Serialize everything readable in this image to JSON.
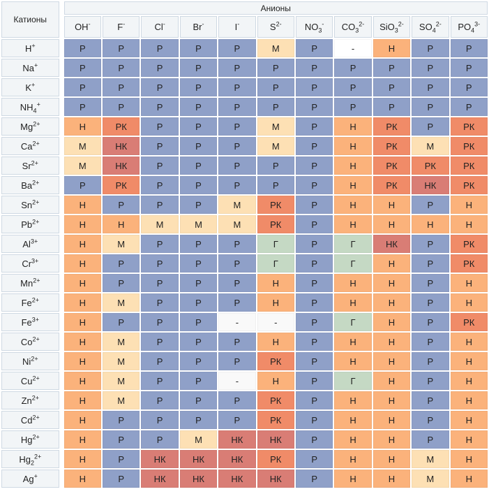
{
  "corner_label": "Катионы",
  "anion_title": "Анионы",
  "anions": [
    {
      "base": "OH",
      "sup": "-",
      "sub": ""
    },
    {
      "base": "F",
      "sup": "-",
      "sub": ""
    },
    {
      "base": "Cl",
      "sup": "-",
      "sub": ""
    },
    {
      "base": "Br",
      "sup": "-",
      "sub": ""
    },
    {
      "base": "I",
      "sup": "-",
      "sub": ""
    },
    {
      "base": "S",
      "sup": "2-",
      "sub": ""
    },
    {
      "base": "NO",
      "sub": "3",
      "sup": "-"
    },
    {
      "base": "CO",
      "sub": "3",
      "sup": "2-"
    },
    {
      "base": "SiO",
      "sub": "3",
      "sup": "2-"
    },
    {
      "base": "SO",
      "sub": "4",
      "sup": "2-"
    },
    {
      "base": "PO",
      "sub": "4",
      "sup": "3-"
    }
  ],
  "cell_colors": {
    "Р": "P",
    "М": "M",
    "Н": "H",
    "РК": "PK",
    "НК": "HK",
    "Г": "G",
    "-": "D"
  },
  "rows": [
    {
      "cation": {
        "base": "H",
        "sub": "",
        "sup": "+"
      },
      "cells": [
        "Р",
        "Р",
        "Р",
        "Р",
        "Р",
        "М",
        "Р",
        "-",
        "Н",
        "Р",
        "Р"
      ],
      "white": [
        7
      ]
    },
    {
      "cation": {
        "base": "Na",
        "sub": "",
        "sup": "+"
      },
      "cells": [
        "Р",
        "Р",
        "Р",
        "Р",
        "Р",
        "Р",
        "Р",
        "Р",
        "Р",
        "Р",
        "Р"
      ]
    },
    {
      "cation": {
        "base": "K",
        "sub": "",
        "sup": "+"
      },
      "cells": [
        "Р",
        "Р",
        "Р",
        "Р",
        "Р",
        "Р",
        "Р",
        "Р",
        "Р",
        "Р",
        "Р"
      ]
    },
    {
      "cation": {
        "base": "NH",
        "sub": "4",
        "sup": "+"
      },
      "cells": [
        "Р",
        "Р",
        "Р",
        "Р",
        "Р",
        "Р",
        "Р",
        "Р",
        "Р",
        "Р",
        "Р"
      ]
    },
    {
      "cation": {
        "base": "Mg",
        "sub": "",
        "sup": "2+"
      },
      "cells": [
        "Н",
        "РК",
        "Р",
        "Р",
        "Р",
        "М",
        "Р",
        "Н",
        "РК",
        "Р",
        "РК"
      ]
    },
    {
      "cation": {
        "base": "Ca",
        "sub": "",
        "sup": "2+"
      },
      "cells": [
        "М",
        "НК",
        "Р",
        "Р",
        "Р",
        "М",
        "Р",
        "Н",
        "РК",
        "М",
        "РК"
      ]
    },
    {
      "cation": {
        "base": "Sr",
        "sub": "",
        "sup": "2+"
      },
      "cells": [
        "М",
        "НК",
        "Р",
        "Р",
        "Р",
        "Р",
        "Р",
        "Н",
        "РК",
        "РК",
        "РК"
      ]
    },
    {
      "cation": {
        "base": "Ba",
        "sub": "",
        "sup": "2+"
      },
      "cells": [
        "Р",
        "РК",
        "Р",
        "Р",
        "Р",
        "Р",
        "Р",
        "Н",
        "РК",
        "НК",
        "РК"
      ]
    },
    {
      "cation": {
        "base": "Sn",
        "sub": "",
        "sup": "2+"
      },
      "cells": [
        "Н",
        "Р",
        "Р",
        "Р",
        "М",
        "РК",
        "Р",
        "Н",
        "Н",
        "Р",
        "Н"
      ]
    },
    {
      "cation": {
        "base": "Pb",
        "sub": "",
        "sup": "2+"
      },
      "cells": [
        "Н",
        "Н",
        "М",
        "М",
        "М",
        "РК",
        "Р",
        "Н",
        "Н",
        "Н",
        "Н"
      ]
    },
    {
      "cation": {
        "base": "Al",
        "sub": "",
        "sup": "3+"
      },
      "cells": [
        "Н",
        "М",
        "Р",
        "Р",
        "Р",
        "Г",
        "Р",
        "Г",
        "НК",
        "Р",
        "РК"
      ]
    },
    {
      "cation": {
        "base": "Cr",
        "sub": "",
        "sup": "3+"
      },
      "cells": [
        "Н",
        "Р",
        "Р",
        "Р",
        "Р",
        "Г",
        "Р",
        "Г",
        "Н",
        "Р",
        "РК"
      ]
    },
    {
      "cation": {
        "base": "Mn",
        "sub": "",
        "sup": "2+"
      },
      "cells": [
        "Н",
        "Р",
        "Р",
        "Р",
        "Р",
        "Н",
        "Р",
        "Н",
        "Н",
        "Р",
        "Н"
      ]
    },
    {
      "cation": {
        "base": "Fe",
        "sub": "",
        "sup": "2+"
      },
      "cells": [
        "Н",
        "М",
        "Р",
        "Р",
        "Р",
        "Н",
        "Р",
        "Н",
        "Н",
        "Р",
        "Н"
      ]
    },
    {
      "cation": {
        "base": "Fe",
        "sub": "",
        "sup": "3+"
      },
      "cells": [
        "Н",
        "Р",
        "Р",
        "Р",
        "-",
        "-",
        "Р",
        "Г",
        "Н",
        "Р",
        "РК"
      ]
    },
    {
      "cation": {
        "base": "Co",
        "sub": "",
        "sup": "2+"
      },
      "cells": [
        "Н",
        "М",
        "Р",
        "Р",
        "Р",
        "Н",
        "Р",
        "Н",
        "Н",
        "Р",
        "Н"
      ]
    },
    {
      "cation": {
        "base": "Ni",
        "sub": "",
        "sup": "2+"
      },
      "cells": [
        "Н",
        "М",
        "Р",
        "Р",
        "Р",
        "РК",
        "Р",
        "Н",
        "Н",
        "Р",
        "Н"
      ]
    },
    {
      "cation": {
        "base": "Cu",
        "sub": "",
        "sup": "2+"
      },
      "cells": [
        "Н",
        "М",
        "Р",
        "Р",
        "-",
        "Н",
        "Р",
        "Г",
        "Н",
        "Р",
        "Н"
      ]
    },
    {
      "cation": {
        "base": "Zn",
        "sub": "",
        "sup": "2+"
      },
      "cells": [
        "Н",
        "М",
        "Р",
        "Р",
        "Р",
        "РК",
        "Р",
        "Н",
        "Н",
        "Р",
        "Н"
      ]
    },
    {
      "cation": {
        "base": "Cd",
        "sub": "",
        "sup": "2+"
      },
      "cells": [
        "Н",
        "Р",
        "Р",
        "Р",
        "Р",
        "РК",
        "Р",
        "Н",
        "Н",
        "Р",
        "Н"
      ]
    },
    {
      "cation": {
        "base": "Hg",
        "sub": "",
        "sup": "2+"
      },
      "cells": [
        "Н",
        "Р",
        "Р",
        "М",
        "НК",
        "НК",
        "Р",
        "Н",
        "Н",
        "Р",
        "Н"
      ]
    },
    {
      "cation": {
        "base": "Hg",
        "sub": "2",
        "sup": "2+"
      },
      "cells": [
        "Н",
        "Р",
        "НК",
        "НК",
        "НК",
        "РК",
        "Р",
        "Н",
        "Н",
        "М",
        "Н"
      ]
    },
    {
      "cation": {
        "base": "Ag",
        "sub": "",
        "sup": "+"
      },
      "cells": [
        "Н",
        "Р",
        "НК",
        "НК",
        "НК",
        "НК",
        "Р",
        "Н",
        "Н",
        "М",
        "Н"
      ]
    }
  ]
}
